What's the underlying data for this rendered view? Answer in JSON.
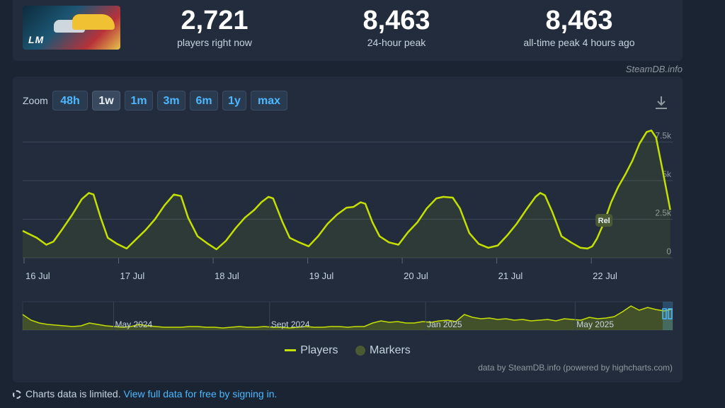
{
  "stats": {
    "current": {
      "value": "2,721",
      "label": "players right now"
    },
    "peak24": {
      "value": "8,463",
      "label": "24-hour peak"
    },
    "alltime": {
      "value": "8,463",
      "label": "all-time peak 4 hours ago"
    }
  },
  "game": {
    "logo_text": "LM"
  },
  "site_credit": "SteamDB.info",
  "zoom": {
    "label": "Zoom",
    "options": [
      "48h",
      "1w",
      "1m",
      "3m",
      "6m",
      "1y",
      "max"
    ],
    "selected": "1w"
  },
  "chart_data": {
    "type": "line",
    "series": [
      {
        "name": "Players",
        "color": "#c4e000",
        "points": [
          [
            0,
            1.75
          ],
          [
            0.3,
            1.3
          ],
          [
            0.5,
            0.85
          ],
          [
            0.65,
            1.05
          ],
          [
            0.85,
            1.9
          ],
          [
            1.05,
            2.8
          ],
          [
            1.25,
            3.8
          ],
          [
            1.4,
            4.2
          ],
          [
            1.5,
            4.1
          ],
          [
            1.65,
            2.6
          ],
          [
            1.8,
            1.3
          ],
          [
            2.0,
            0.9
          ],
          [
            2.2,
            0.6
          ],
          [
            2.4,
            1.2
          ],
          [
            2.6,
            1.8
          ],
          [
            2.8,
            2.5
          ],
          [
            3.0,
            3.4
          ],
          [
            3.2,
            4.1
          ],
          [
            3.35,
            4.0
          ],
          [
            3.5,
            2.6
          ],
          [
            3.7,
            1.4
          ],
          [
            3.9,
            0.95
          ],
          [
            4.1,
            0.55
          ],
          [
            4.3,
            1.1
          ],
          [
            4.5,
            1.9
          ],
          [
            4.7,
            2.6
          ],
          [
            4.9,
            3.1
          ],
          [
            5.05,
            3.6
          ],
          [
            5.2,
            3.95
          ],
          [
            5.3,
            3.85
          ],
          [
            5.5,
            2.3
          ],
          [
            5.65,
            1.3
          ],
          [
            5.85,
            1.0
          ],
          [
            6.05,
            0.75
          ],
          [
            6.25,
            1.4
          ],
          [
            6.45,
            2.2
          ],
          [
            6.65,
            2.8
          ],
          [
            6.85,
            3.25
          ],
          [
            7.0,
            3.3
          ],
          [
            7.15,
            3.6
          ],
          [
            7.25,
            3.5
          ],
          [
            7.4,
            2.3
          ],
          [
            7.55,
            1.4
          ],
          [
            7.75,
            1.0
          ],
          [
            7.95,
            0.85
          ],
          [
            8.15,
            1.65
          ],
          [
            8.35,
            2.3
          ],
          [
            8.55,
            3.2
          ],
          [
            8.75,
            3.85
          ],
          [
            8.9,
            3.95
          ],
          [
            9.1,
            3.9
          ],
          [
            9.25,
            3.2
          ],
          [
            9.45,
            1.6
          ],
          [
            9.65,
            0.9
          ],
          [
            9.85,
            0.65
          ],
          [
            10.05,
            0.8
          ],
          [
            10.25,
            1.45
          ],
          [
            10.45,
            2.2
          ],
          [
            10.65,
            3.1
          ],
          [
            10.85,
            3.95
          ],
          [
            10.95,
            4.2
          ],
          [
            11.05,
            4.05
          ],
          [
            11.2,
            3.0
          ],
          [
            11.4,
            1.4
          ],
          [
            11.6,
            1.0
          ],
          [
            11.8,
            0.65
          ],
          [
            11.95,
            0.6
          ],
          [
            12.05,
            0.75
          ],
          [
            12.15,
            1.25
          ],
          [
            12.3,
            2.3
          ],
          [
            12.45,
            3.6
          ],
          [
            12.6,
            4.6
          ],
          [
            12.75,
            5.4
          ],
          [
            12.9,
            6.3
          ],
          [
            13.05,
            7.4
          ],
          [
            13.2,
            8.15
          ],
          [
            13.3,
            8.25
          ],
          [
            13.4,
            7.8
          ],
          [
            13.55,
            5.5
          ],
          [
            13.7,
            3.1
          ]
        ]
      }
    ],
    "ylim": [
      0,
      8.9
    ],
    "yticks": [
      {
        "v": 0,
        "label": "0"
      },
      {
        "v": 2.5,
        "label": "2.5k"
      },
      {
        "v": 5,
        "label": "5k"
      },
      {
        "v": 7.5,
        "label": "7.5k"
      }
    ],
    "xticks": [
      {
        "v": 0,
        "label": "16 Jul"
      },
      {
        "v": 2,
        "label": "17 Jul"
      },
      {
        "v": 4,
        "label": "18 Jul"
      },
      {
        "v": 6,
        "label": "19 Jul"
      },
      {
        "v": 8,
        "label": "20 Jul"
      },
      {
        "v": 10,
        "label": "21 Jul"
      },
      {
        "v": 12,
        "label": "22 Jul"
      }
    ],
    "xlim": [
      0,
      13.75
    ],
    "marker": {
      "x": 12.3,
      "label": "Rel",
      "color": "#4a5a32"
    },
    "grid": true,
    "navigator": {
      "labels": [
        "May 2024",
        "Sept 2024",
        "Jan 2025",
        "May 2025"
      ],
      "label_positions": [
        0.14,
        0.38,
        0.62,
        0.85
      ],
      "values": [
        2.2,
        1.4,
        1.0,
        0.8,
        0.7,
        0.6,
        0.5,
        0.6,
        1.0,
        0.8,
        0.6,
        0.5,
        0.4,
        0.5,
        0.8,
        0.6,
        0.5,
        0.4,
        0.4,
        0.4,
        0.5,
        0.5,
        0.4,
        0.4,
        0.3,
        0.4,
        0.5,
        0.4,
        0.4,
        0.5,
        0.4,
        0.4,
        0.3,
        0.4,
        0.5,
        0.4,
        0.4,
        0.5,
        0.5,
        0.4,
        0.5,
        0.5,
        1.0,
        1.3,
        1.1,
        1.2,
        1.0,
        1.0,
        1.2,
        1.1,
        1.3,
        1.4,
        1.2,
        2.2,
        1.8,
        1.6,
        1.7,
        1.5,
        1.6,
        1.4,
        1.5,
        1.3,
        1.4,
        1.5,
        1.3,
        1.6,
        1.5,
        1.4,
        1.8,
        1.6,
        1.7,
        1.9,
        2.6,
        3.4,
        2.8,
        3.2,
        2.9,
        2.7,
        3.0
      ]
    },
    "legend": [
      {
        "name": "Players",
        "kind": "line"
      },
      {
        "name": "Markers",
        "kind": "dot"
      }
    ],
    "legend_position": "bottom"
  },
  "data_credit": "data by SteamDB.info (powered by highcharts.com)",
  "notice": {
    "text": "Charts data is limited.",
    "link": "View full data for free by signing in."
  }
}
